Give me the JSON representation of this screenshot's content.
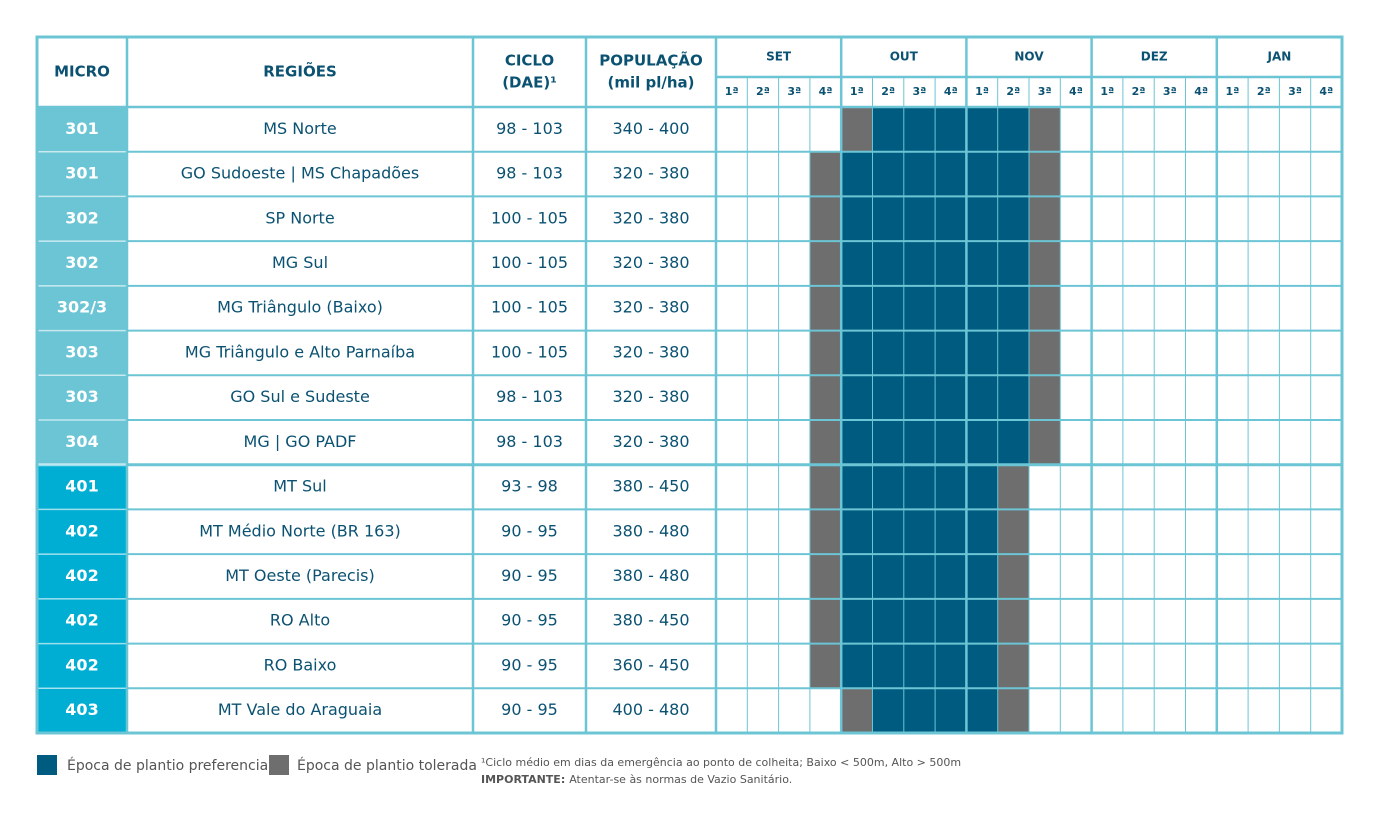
{
  "header": {
    "micro": "MICRO",
    "regions": "REGIÕES",
    "cycle": [
      "CICLO",
      "(DAE)¹"
    ],
    "population": [
      "POPULAÇÃO",
      "(mil pl/ha)"
    ],
    "months": [
      "SET",
      "OUT",
      "NOV",
      "DEZ",
      "JAN"
    ],
    "weeks": [
      "1ª",
      "2ª",
      "3ª",
      "4ª"
    ]
  },
  "rows": [
    {
      "micro": "301",
      "region": "MS Norte",
      "cycle": "98 - 103",
      "population": "340 - 400",
      "color": "#6cc5d4",
      "schedule": [
        null,
        null,
        null,
        null,
        1,
        0,
        0,
        0,
        0,
        0,
        1,
        null,
        null,
        null,
        null,
        null,
        null,
        null,
        null,
        null
      ]
    },
    {
      "micro": "301",
      "region": "GO Sudoeste | MS Chapadões",
      "cycle": "98 - 103",
      "population": "320 - 380",
      "color": "#6cc5d4",
      "schedule": [
        null,
        null,
        null,
        1,
        0,
        0,
        0,
        0,
        0,
        0,
        1,
        null,
        null,
        null,
        null,
        null,
        null,
        null,
        null,
        null
      ]
    },
    {
      "micro": "302",
      "region": "SP Norte",
      "cycle": "100 - 105",
      "population": "320 - 380",
      "color": "#6cc5d4",
      "schedule": [
        null,
        null,
        null,
        1,
        0,
        0,
        0,
        0,
        0,
        0,
        1,
        null,
        null,
        null,
        null,
        null,
        null,
        null,
        null,
        null
      ]
    },
    {
      "micro": "302",
      "region": "MG Sul",
      "cycle": "100 - 105",
      "population": "320 - 380",
      "color": "#6cc5d4",
      "schedule": [
        null,
        null,
        null,
        1,
        0,
        0,
        0,
        0,
        0,
        0,
        1,
        null,
        null,
        null,
        null,
        null,
        null,
        null,
        null,
        null
      ]
    },
    {
      "micro": "302/3",
      "region": "MG Triângulo (Baixo)",
      "cycle": "100 - 105",
      "population": "320 - 380",
      "color": "#6cc5d4",
      "schedule": [
        null,
        null,
        null,
        1,
        0,
        0,
        0,
        0,
        0,
        0,
        1,
        null,
        null,
        null,
        null,
        null,
        null,
        null,
        null,
        null
      ]
    },
    {
      "micro": "303",
      "region": "MG Triângulo e Alto Parnaíba",
      "cycle": "100 - 105",
      "population": "320 - 380",
      "color": "#6cc5d4",
      "schedule": [
        null,
        null,
        null,
        1,
        0,
        0,
        0,
        0,
        0,
        0,
        1,
        null,
        null,
        null,
        null,
        null,
        null,
        null,
        null,
        null
      ]
    },
    {
      "micro": "303",
      "region": "GO Sul e Sudeste",
      "cycle": "98 - 103",
      "population": "320 - 380",
      "color": "#6cc5d4",
      "schedule": [
        null,
        null,
        null,
        1,
        0,
        0,
        0,
        0,
        0,
        0,
        1,
        null,
        null,
        null,
        null,
        null,
        null,
        null,
        null,
        null
      ]
    },
    {
      "micro": "304",
      "region": "MG | GO PADF",
      "cycle": "98 - 103",
      "population": "320 - 380",
      "color": "#6cc5d4",
      "schedule": [
        null,
        null,
        null,
        1,
        0,
        0,
        0,
        0,
        0,
        0,
        1,
        null,
        null,
        null,
        null,
        null,
        null,
        null,
        null,
        null
      ]
    },
    {
      "micro": "401",
      "region": "MT Sul",
      "cycle": "93 - 98",
      "population": "380 - 450",
      "color": "#00aed3",
      "schedule": [
        null,
        null,
        null,
        1,
        0,
        0,
        0,
        0,
        0,
        1,
        null,
        null,
        null,
        null,
        null,
        null,
        null,
        null,
        null,
        null
      ]
    },
    {
      "micro": "402",
      "region": "MT Médio Norte (BR 163)",
      "cycle": "90 - 95",
      "population": "380 - 480",
      "color": "#00aed3",
      "schedule": [
        null,
        null,
        null,
        1,
        0,
        0,
        0,
        0,
        0,
        1,
        null,
        null,
        null,
        null,
        null,
        null,
        null,
        null,
        null,
        null
      ]
    },
    {
      "micro": "402",
      "region": "MT Oeste (Parecis)",
      "cycle": "90 - 95",
      "population": "380 - 480",
      "color": "#00aed3",
      "schedule": [
        null,
        null,
        null,
        1,
        0,
        0,
        0,
        0,
        0,
        1,
        null,
        null,
        null,
        null,
        null,
        null,
        null,
        null,
        null,
        null
      ]
    },
    {
      "micro": "402",
      "region": "RO Alto",
      "cycle": "90 - 95",
      "population": "380 - 450",
      "color": "#00aed3",
      "schedule": [
        null,
        null,
        null,
        1,
        0,
        0,
        0,
        0,
        0,
        1,
        null,
        null,
        null,
        null,
        null,
        null,
        null,
        null,
        null,
        null
      ]
    },
    {
      "micro": "402",
      "region": "RO Baixo",
      "cycle": "90 - 95",
      "population": "360 - 450",
      "color": "#00aed3",
      "schedule": [
        null,
        null,
        null,
        1,
        0,
        0,
        0,
        0,
        0,
        1,
        null,
        null,
        null,
        null,
        null,
        null,
        null,
        null,
        null,
        null
      ]
    },
    {
      "micro": "403",
      "region": "MT Vale do Araguaia",
      "cycle": "90 - 95",
      "population": "400 - 480",
      "color": "#00aed3",
      "schedule": [
        null,
        null,
        null,
        null,
        1,
        0,
        0,
        0,
        0,
        1,
        null,
        null,
        null,
        null,
        null,
        null,
        null,
        null,
        null,
        null
      ]
    }
  ],
  "legend": [
    {
      "label": "Época de plantio preferencial",
      "color": "#005b80"
    },
    {
      "label": "Época de plantio tolerada",
      "color": "#6e6e6e"
    }
  ],
  "footnote": "¹Ciclo médio em dias da emergência ao ponto de colheita; Baixo < 500m, Alto > 500m",
  "important": {
    "label": "IMPORTANTE:",
    "text": "Atentar-se às normas de Vazio Sanitário."
  }
}
